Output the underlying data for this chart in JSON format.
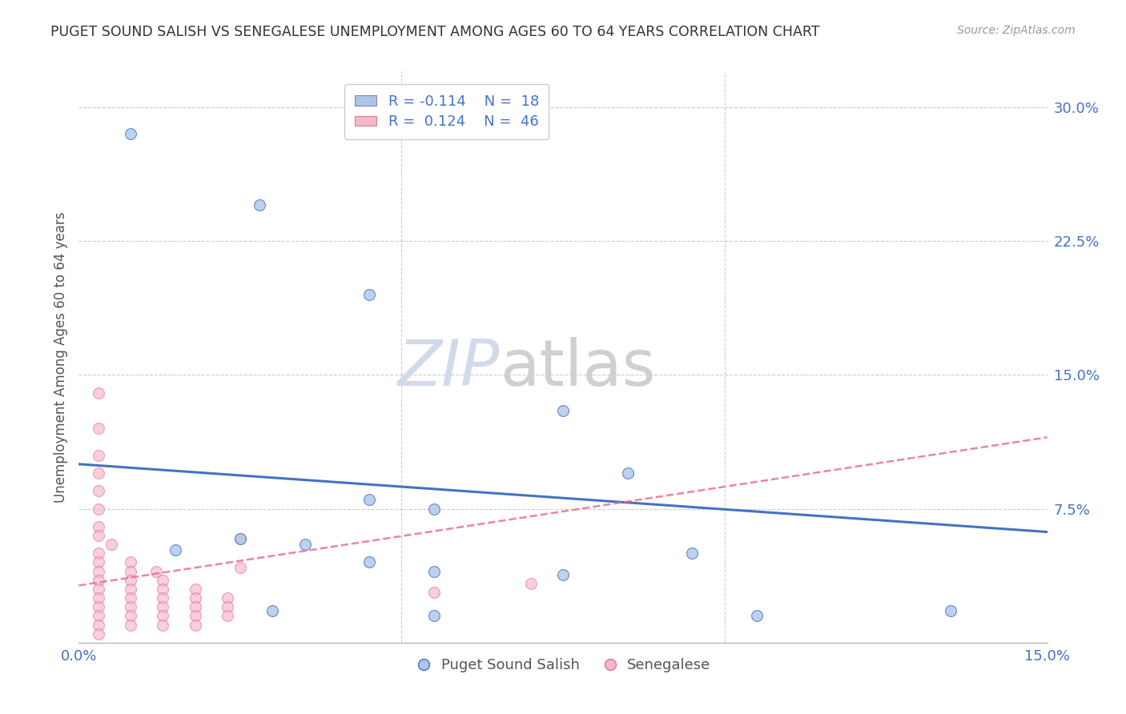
{
  "title": "PUGET SOUND SALISH VS SENEGALESE UNEMPLOYMENT AMONG AGES 60 TO 64 YEARS CORRELATION CHART",
  "source": "Source: ZipAtlas.com",
  "ylabel": "Unemployment Among Ages 60 to 64 years",
  "xlim": [
    0.0,
    0.15
  ],
  "ylim": [
    0.0,
    0.32
  ],
  "x_ticks": [
    0.0,
    0.05,
    0.1,
    0.15
  ],
  "x_tick_labels": [
    "0.0%",
    "",
    "",
    "15.0%"
  ],
  "y_ticks": [
    0.0,
    0.075,
    0.15,
    0.225,
    0.3
  ],
  "y_tick_labels": [
    "",
    "7.5%",
    "15.0%",
    "22.5%",
    "30.0%"
  ],
  "grid_color": "#cccccc",
  "background_color": "#ffffff",
  "legend_r1": "R = -0.114",
  "legend_n1": "N =  18",
  "legend_r2": "R =  0.124",
  "legend_n2": "N =  46",
  "color_blue": "#adc6e8",
  "color_pink": "#f5b8c8",
  "line_blue": "#4472c4",
  "line_pink": "#e87090",
  "blue_points": [
    [
      0.008,
      0.285
    ],
    [
      0.028,
      0.245
    ],
    [
      0.045,
      0.195
    ],
    [
      0.075,
      0.13
    ],
    [
      0.085,
      0.095
    ],
    [
      0.045,
      0.08
    ],
    [
      0.055,
      0.075
    ],
    [
      0.025,
      0.058
    ],
    [
      0.035,
      0.055
    ],
    [
      0.015,
      0.052
    ],
    [
      0.095,
      0.05
    ],
    [
      0.045,
      0.045
    ],
    [
      0.055,
      0.04
    ],
    [
      0.075,
      0.038
    ],
    [
      0.03,
      0.018
    ],
    [
      0.055,
      0.015
    ],
    [
      0.105,
      0.015
    ],
    [
      0.135,
      0.018
    ]
  ],
  "pink_points": [
    [
      0.003,
      0.14
    ],
    [
      0.003,
      0.12
    ],
    [
      0.003,
      0.105
    ],
    [
      0.003,
      0.095
    ],
    [
      0.003,
      0.085
    ],
    [
      0.003,
      0.075
    ],
    [
      0.003,
      0.065
    ],
    [
      0.003,
      0.06
    ],
    [
      0.005,
      0.055
    ],
    [
      0.003,
      0.05
    ],
    [
      0.003,
      0.045
    ],
    [
      0.008,
      0.045
    ],
    [
      0.003,
      0.04
    ],
    [
      0.008,
      0.04
    ],
    [
      0.012,
      0.04
    ],
    [
      0.003,
      0.035
    ],
    [
      0.008,
      0.035
    ],
    [
      0.013,
      0.035
    ],
    [
      0.003,
      0.03
    ],
    [
      0.008,
      0.03
    ],
    [
      0.013,
      0.03
    ],
    [
      0.018,
      0.03
    ],
    [
      0.003,
      0.025
    ],
    [
      0.008,
      0.025
    ],
    [
      0.013,
      0.025
    ],
    [
      0.018,
      0.025
    ],
    [
      0.023,
      0.025
    ],
    [
      0.003,
      0.02
    ],
    [
      0.008,
      0.02
    ],
    [
      0.013,
      0.02
    ],
    [
      0.018,
      0.02
    ],
    [
      0.023,
      0.02
    ],
    [
      0.003,
      0.015
    ],
    [
      0.008,
      0.015
    ],
    [
      0.013,
      0.015
    ],
    [
      0.018,
      0.015
    ],
    [
      0.023,
      0.015
    ],
    [
      0.003,
      0.01
    ],
    [
      0.008,
      0.01
    ],
    [
      0.013,
      0.01
    ],
    [
      0.018,
      0.01
    ],
    [
      0.003,
      0.005
    ],
    [
      0.025,
      0.042
    ],
    [
      0.025,
      0.058
    ],
    [
      0.055,
      0.028
    ],
    [
      0.07,
      0.033
    ]
  ],
  "blue_line": [
    [
      0.0,
      0.1
    ],
    [
      0.15,
      0.062
    ]
  ],
  "pink_line_dashed": [
    [
      0.0,
      0.032
    ],
    [
      0.15,
      0.115
    ]
  ]
}
